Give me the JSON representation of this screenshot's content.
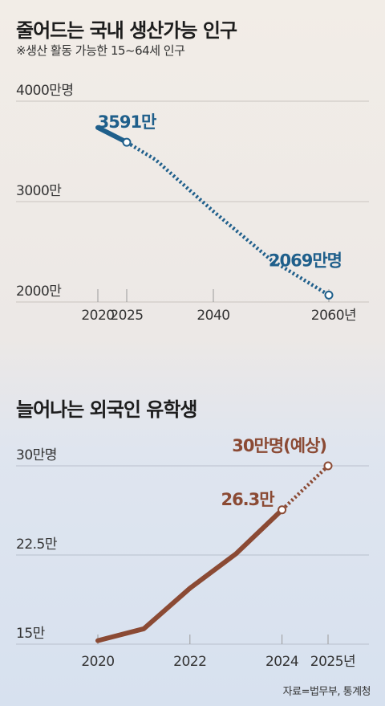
{
  "chart_data": [
    {
      "type": "line",
      "title": "줄어드는 국내 생산가능 인구",
      "subtitle": "※생산 활동 가능한 15~64세 인구",
      "y_unit": "만명",
      "ylim": [
        2000,
        4000
      ],
      "y_ticks": [
        {
          "value": 4000,
          "label": "4000만명"
        },
        {
          "value": 3000,
          "label": "3000만"
        },
        {
          "value": 2000,
          "label": "2000만"
        }
      ],
      "x_range": [
        2020,
        2060
      ],
      "x_ticks": [
        {
          "value": 2020,
          "label": "2020"
        },
        {
          "value": 2025,
          "label": "2025"
        },
        {
          "value": 2040,
          "label": "2040"
        },
        {
          "value": 2060,
          "label": "2060년"
        }
      ],
      "series": [
        {
          "kind": "actual",
          "points": [
            [
              2020,
              3738
            ],
            [
              2025,
              3591
            ]
          ]
        },
        {
          "kind": "projection",
          "points": [
            [
              2025,
              3591
            ],
            [
              2030,
              3417
            ],
            [
              2040,
              2903
            ],
            [
              2050,
              2419
            ],
            [
              2060,
              2069
            ]
          ]
        }
      ],
      "annotations": [
        {
          "x": 2025,
          "y": 3591,
          "label": "3591만"
        },
        {
          "x": 2060,
          "y": 2069,
          "label": "2069만명"
        }
      ],
      "color": "#1f5f8b",
      "grid": true
    },
    {
      "type": "line",
      "title": "늘어나는 외국인 유학생",
      "y_unit": "만명",
      "ylim": [
        15,
        30
      ],
      "y_ticks": [
        {
          "value": 30,
          "label": "30만명"
        },
        {
          "value": 22.5,
          "label": "22.5만"
        },
        {
          "value": 15,
          "label": "15만"
        }
      ],
      "x_range": [
        2020,
        2025
      ],
      "x_ticks": [
        {
          "value": 2020,
          "label": "2020"
        },
        {
          "value": 2022,
          "label": "2022"
        },
        {
          "value": 2024,
          "label": "2024"
        },
        {
          "value": 2025,
          "label": "2025년"
        }
      ],
      "series": [
        {
          "kind": "actual",
          "points": [
            [
              2020,
              15.3
            ],
            [
              2021,
              16.3
            ],
            [
              2022,
              19.7
            ],
            [
              2023,
              22.6
            ],
            [
              2024,
              26.3
            ]
          ]
        },
        {
          "kind": "projection",
          "points": [
            [
              2024,
              26.3
            ],
            [
              2025,
              30
            ]
          ]
        }
      ],
      "annotations": [
        {
          "x": 2024,
          "y": 26.3,
          "label": "26.3만"
        },
        {
          "x": 2025,
          "y": 30,
          "label": "30만명(예상)"
        }
      ],
      "color": "#8b4a34",
      "grid": true
    }
  ],
  "source": "자료=법무부, 통계청"
}
